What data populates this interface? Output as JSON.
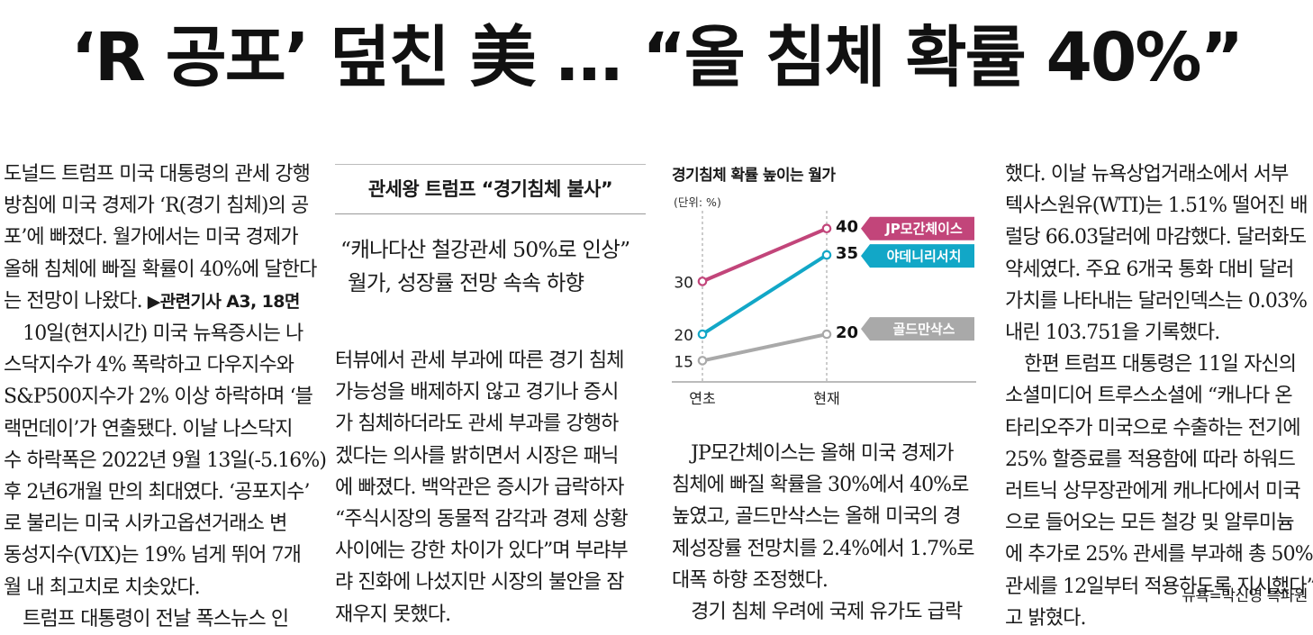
{
  "headline": "‘R 공포’ 덮친 美 … “올 침체 확률 40%”",
  "column1": [
    "도널드 트럼프 미국 대통령의 관세 강행",
    "방침에 미국 경제가 ‘R(경기 침체)의 공",
    "포’에 빠졌다. 월가에서는 미국 경제가",
    "올해 침체에 빠질 확률이 40%에 달한다",
    "는 전망이 나왔다.",
    "　10일(현지시간) 미국 뉴욕증시는 나",
    "스닥지수가 4% 폭락하고 다우지수와",
    "S&P500지수가 2% 이상 하락하며 ‘블",
    "랙먼데이’가 연출됐다. 이날 나스닥지",
    "수 하락폭은 2022년 9월 13일(-5.16%)",
    "후 2년6개월 만의 최대였다. ‘공포지수’",
    "로 불리는 미국 시카고옵션거래소 변",
    "동성지수(VIX)는 19% 넘게 뛰어 7개",
    "월 내 최고치로 치솟았다.",
    "　트럼프 대통령이 전날 폭스뉴스 인"
  ],
  "related_ref": "▶관련기사 A3, 18면",
  "subhead": "관세왕 트럼프 “경기침체 불사”",
  "deck": [
    "“캐나다산 철강관세 50%로 인상”",
    "월가, 성장률 전망 속속 하향"
  ],
  "column2": [
    "터뷰에서 관세 부과에 따른 경기 침체",
    "가능성을 배제하지 않고 경기나 증시",
    "가 침체하더라도 관세 부과를 강행하",
    "겠다는 의사를 밝히면서 시장은 패닉",
    "에 빠졌다. 백악관은 증시가 급락하자",
    "“주식시장의 동물적 감각과 경제 상황",
    "사이에는 강한 차이가 있다”며 부랴부",
    "랴 진화에 나섰지만 시장의 불안을 잠",
    "재우지 못했다."
  ],
  "column3": [
    "　JP모간체이스는 올해 미국 경제가",
    "침체에 빠질 확률을 30%에서 40%로",
    "높였고, 골드만삭스는 올해 미국의 경",
    "제성장률 전망치를 2.4%에서 1.7%로",
    "대폭 하향 조정했다.",
    "　경기 침체 우려에 국제 유가도 급락"
  ],
  "column4": [
    "했다. 이날 뉴욕상업거래소에서 서부",
    "텍사스원유(WTI)는 1.51% 떨어진 배",
    "럴당 66.03달러에 마감했다. 달러화도",
    "약세였다. 주요 6개국 통화 대비 달러",
    "가치를 나타내는 달러인덱스는 0.03%",
    "내린 103.751을 기록했다.",
    "　한편 트럼프 대통령은 11일 자신의",
    "소셜미디어 트루스소셜에 “캐나다 온",
    "타리오주가 미국으로 수출하는 전기에",
    "25% 할증료를 적용함에 따라 하워드",
    "러트닉 상무장관에게 캐나다에서 미국",
    "으로 들어오는 모든 철강 및 알루미늄",
    "에 추가로 25% 관세를 부과해 총 50%",
    "관세를 12일부터 적용하도록 지시했다”",
    "고 밝혔다."
  ],
  "byline": "뉴욕=박신영 특파원",
  "chart_data": {
    "type": "line",
    "title": "경기침체 확률 높이는 월가",
    "unit": "(단위: %)",
    "categories": [
      "연초",
      "현재"
    ],
    "series": [
      {
        "name": "JP모간체이스",
        "values": [
          30,
          40
        ],
        "color": "#c2457a"
      },
      {
        "name": "야데니리서치",
        "values": [
          20,
          35
        ],
        "color": "#12a7c7"
      },
      {
        "name": "골드만삭스",
        "values": [
          15,
          20
        ],
        "color": "#a9a9a9"
      }
    ],
    "ylim": [
      12,
      42
    ]
  }
}
